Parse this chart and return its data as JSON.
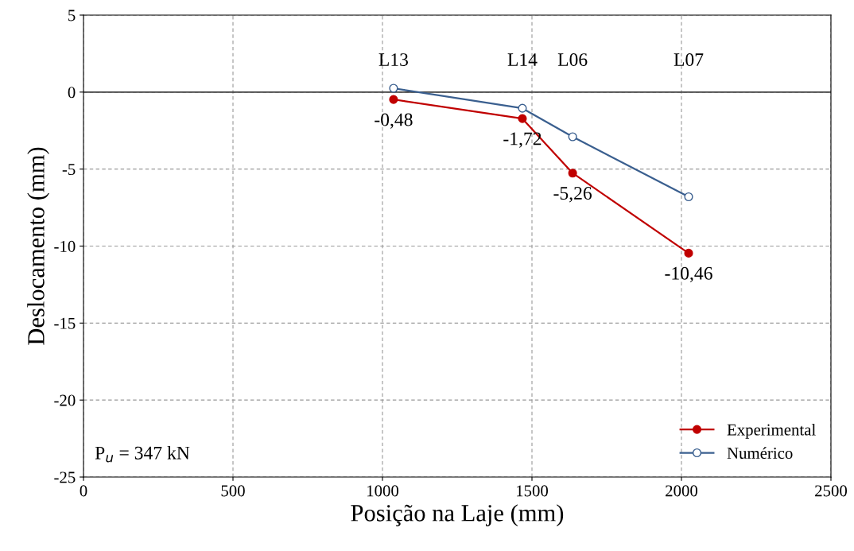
{
  "chart_data": {
    "type": "line",
    "xlabel": "Posição na Laje (mm)",
    "ylabel": "Deslocamento (mm)",
    "series": [
      {
        "name": "Experimental",
        "color": "#c00000",
        "x": [
          1037,
          1468,
          1636,
          2024
        ],
        "values": [
          -0.48,
          -1.72,
          -5.26,
          -10.46
        ],
        "value_labels": [
          "-0,48",
          "-1,72",
          "-5,26",
          "-10,46"
        ]
      },
      {
        "name": "Numérico",
        "color": "#3a5f8f",
        "x": [
          1037,
          1468,
          1636,
          2024
        ],
        "values": [
          0.25,
          -1.05,
          -2.9,
          -6.8
        ]
      }
    ],
    "xlim": [
      0,
      2500
    ],
    "xticks": [
      0,
      500,
      1000,
      1500,
      2000,
      2500
    ],
    "ylim": [
      -25,
      5
    ],
    "yticks": [
      -25,
      -20,
      -15,
      -10,
      -5,
      0,
      5
    ],
    "ref_lines": [
      {
        "axis": "y",
        "value": 0,
        "color": "#404040",
        "line_style": "solid"
      }
    ],
    "annotations": [
      "L13",
      "L14",
      "L06",
      "L07",
      "P$_{u}$ = 347 kN"
    ],
    "grid": true,
    "legend": "bottom right",
    "marker": "circle",
    "line_style": "solid"
  }
}
